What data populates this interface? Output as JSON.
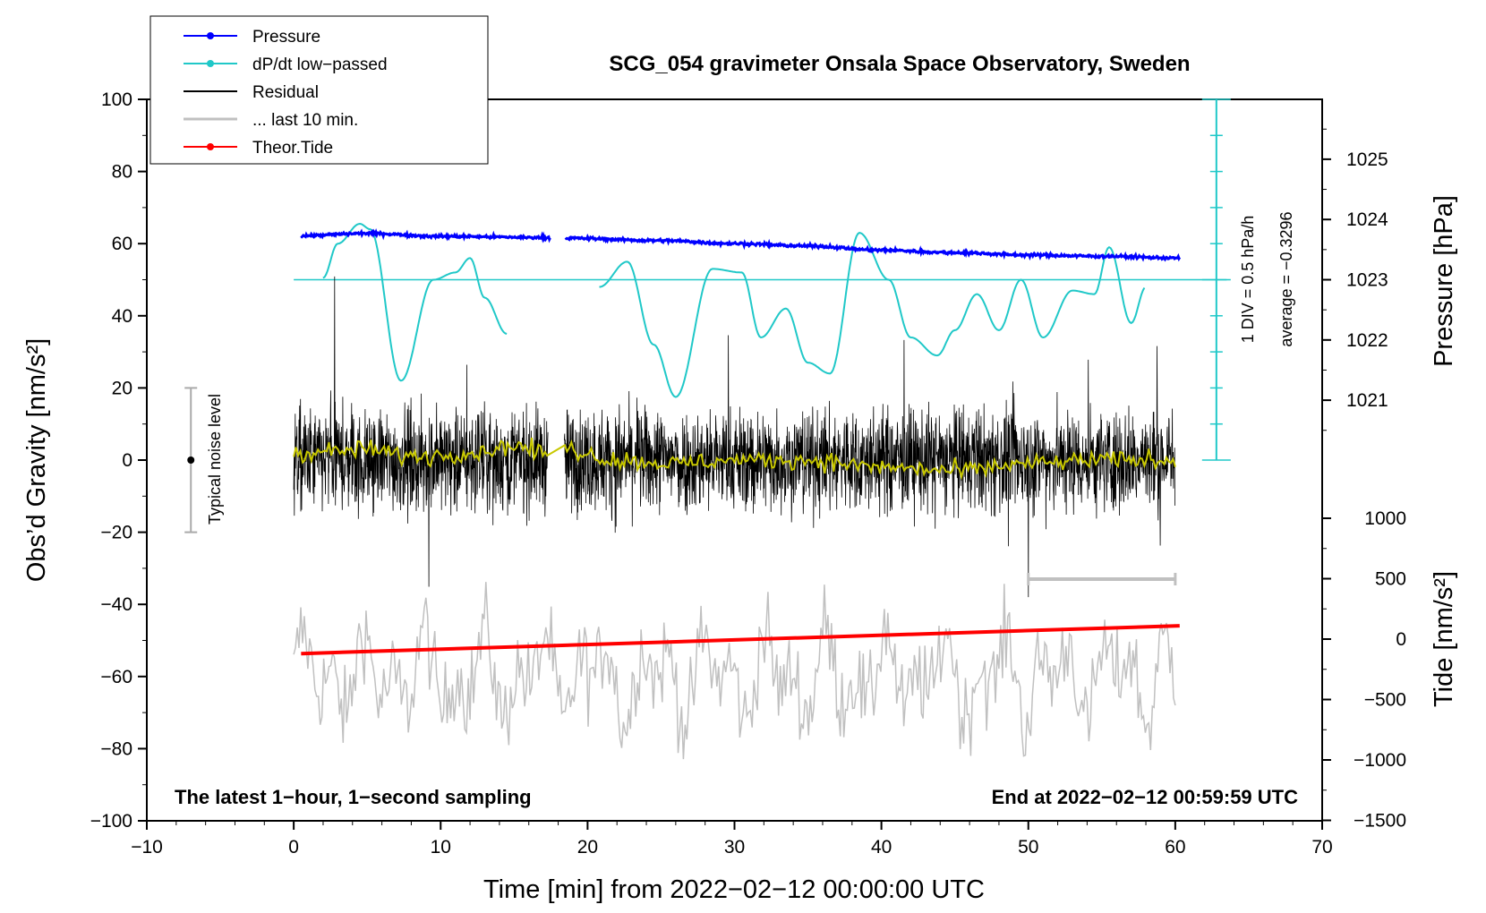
{
  "chart_data": {
    "type": "line",
    "title": "SCG_054 gravimeter Onsala Space Observatory, Sweden",
    "xlabel": "Time [min] from 2022−02−12 00:00:00 UTC",
    "ylabel": "Obs’d Gravity [nm/s²]",
    "y2label": "Pressure [hPa]",
    "y3label": "Tide [nm/s²]",
    "xlim": [
      -10,
      70
    ],
    "ylim": [
      -100,
      100
    ],
    "xticks": [
      "−10",
      "0",
      "10",
      "20",
      "30",
      "40",
      "50",
      "60",
      "70"
    ],
    "xtick_values": [
      -10,
      0,
      10,
      20,
      30,
      40,
      50,
      60,
      70
    ],
    "yticks": [
      "−100",
      "−80",
      "−60",
      "−40",
      "−20",
      "0",
      "20",
      "40",
      "60",
      "80",
      "100"
    ],
    "ytick_values": [
      -100,
      -80,
      -60,
      -40,
      -20,
      0,
      20,
      40,
      60,
      80,
      100
    ],
    "pressure_axis": {
      "ticks": [
        "1021",
        "1022",
        "1023",
        "1024",
        "1025"
      ],
      "values": [
        1021,
        1022,
        1023,
        1024,
        1025
      ]
    },
    "tide_axis": {
      "ticks": [
        "1000",
        "500",
        "0",
        "−500",
        "−1000",
        "−1500"
      ],
      "values": [
        1000,
        500,
        0,
        -500,
        -1000,
        -1500
      ]
    },
    "legend": [
      {
        "label": "Pressure",
        "color": "#0000ff",
        "marker": true
      },
      {
        "label": "dP/dt low−passed",
        "color": "#20c8c8",
        "marker": true
      },
      {
        "label": "Residual",
        "color": "#000000",
        "marker": false
      },
      {
        "label": "... last 10 min.",
        "color": "#c0c0c0",
        "marker": false
      },
      {
        "label": "Theor.Tide",
        "color": "#ff0000",
        "marker": true
      }
    ],
    "legend_position": "top-left",
    "series": [
      {
        "name": "Pressure",
        "unit": "hPa",
        "color": "#0000ff",
        "x": [
          0.5,
          5,
          10,
          17.5,
          18.5,
          25,
          30,
          35,
          40,
          45,
          50,
          55,
          60.3
        ],
        "values": [
          1023.73,
          1023.77,
          1023.72,
          1023.7,
          1023.69,
          1023.65,
          1023.6,
          1023.56,
          1023.49,
          1023.45,
          1023.41,
          1023.39,
          1023.36
        ]
      },
      {
        "name": "dP/dt low−passed",
        "unit": "gravity-axis units (1 DIV = 0.5 hPa/h)",
        "color": "#20c8c8",
        "x": [
          2,
          3,
          4.5,
          5.2,
          7.3,
          9.5,
          11,
          12,
          13,
          14.5,
          20.8,
          22.7,
          24.5,
          26,
          28.5,
          30.5,
          31.8,
          33.5,
          35,
          36.5,
          38.5,
          40.5,
          42,
          43.8,
          45,
          46.5,
          48,
          49.5,
          51,
          53,
          54.5,
          55.5,
          57,
          58
        ],
        "values": [
          50.5,
          60,
          65.5,
          64,
          22,
          50,
          52,
          56,
          45,
          35,
          48,
          55,
          32,
          17.5,
          53,
          52,
          34,
          42,
          27,
          24,
          63,
          50,
          34,
          29,
          36,
          46,
          36,
          50,
          34,
          47,
          46,
          59,
          38,
          48
        ]
      },
      {
        "name": "Residual",
        "unit": "nm/s²",
        "color": "#000000",
        "x_range": [
          0,
          60
        ],
        "gaps": [
          [
            17.3,
            18.4
          ]
        ],
        "noise_amplitude": 20
      },
      {
        "name": "Residual smoothed",
        "color": "#c8c800",
        "x": [
          0,
          3,
          5,
          8,
          12,
          15,
          17,
          18.5,
          22,
          26,
          30,
          35,
          40,
          45,
          50,
          55,
          60
        ],
        "values": [
          2,
          2.5,
          3,
          1,
          2,
          4,
          2,
          3,
          0,
          -1,
          0,
          0,
          -2,
          -3,
          -1,
          0,
          0
        ]
      },
      {
        "name": "... last 10 min.",
        "unit": "nm/s² (offset)",
        "color": "#c0c0c0",
        "x_range": [
          0,
          60
        ]
      },
      {
        "name": "Theor.Tide",
        "unit": "nm/s²",
        "color": "#ff0000",
        "x": [
          0.5,
          60.3
        ],
        "values": [
          -120,
          110
        ]
      }
    ],
    "last10_bracket": [
      50,
      60
    ],
    "noise_level": {
      "label": "Typical noise level",
      "range": [
        -20,
        20
      ]
    },
    "dpdt_scale": {
      "div": "1 DIV = 0.5 hPa/h",
      "average": "average = −0.3296",
      "zero_level": 50
    },
    "annotations": {
      "left": "The latest 1−hour, 1−second sampling",
      "right": "End at 2022−02−12 00:59:59 UTC"
    }
  }
}
